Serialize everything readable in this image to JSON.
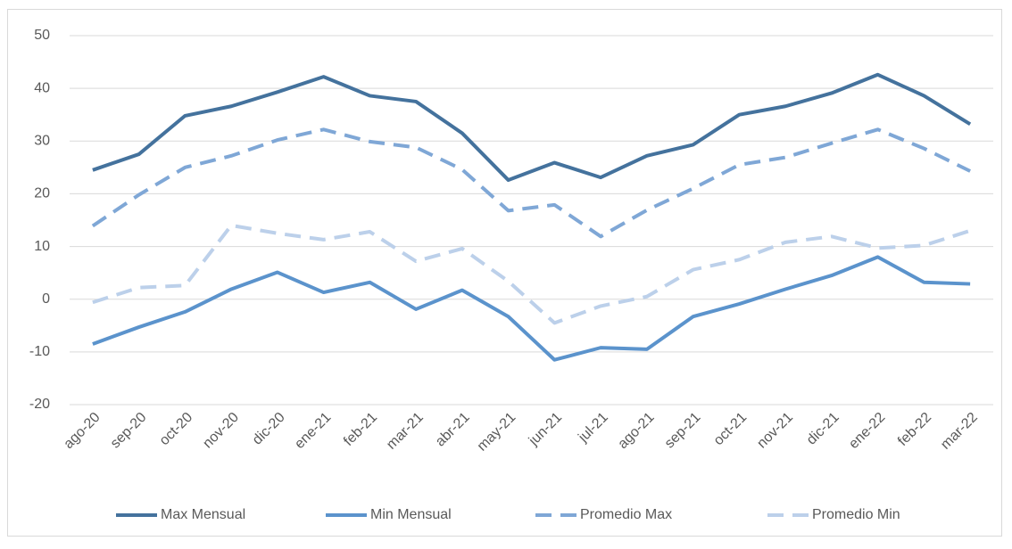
{
  "chart_data": {
    "type": "line",
    "categories": [
      "ago-20",
      "sep-20",
      "oct-20",
      "nov-20",
      "dic-20",
      "ene-21",
      "feb-21",
      "mar-21",
      "abr-21",
      "may-21",
      "jun-21",
      "jul-21",
      "ago-21",
      "sep-21",
      "oct-21",
      "nov-21",
      "dic-21",
      "ene-22",
      "feb-22",
      "mar-22"
    ],
    "series": [
      {
        "name": "Max Mensual",
        "color": "#44729d",
        "dash": false,
        "values": [
          24.5,
          27.5,
          34.8,
          36.6,
          39.3,
          42.2,
          38.6,
          37.5,
          31.5,
          22.6,
          25.9,
          23.1,
          27.2,
          29.3,
          35.0,
          36.6,
          39.1,
          42.6,
          38.6,
          33.2
        ]
      },
      {
        "name": "Min Mensual",
        "color": "#5b93cc",
        "dash": false,
        "values": [
          -8.5,
          -5.3,
          -2.4,
          1.9,
          5.1,
          1.3,
          3.2,
          -1.9,
          1.7,
          -3.3,
          -11.5,
          -9.2,
          -9.5,
          -3.3,
          -0.9,
          1.9,
          4.5,
          8.0,
          3.2,
          2.9
        ]
      },
      {
        "name": "Promedio Max",
        "color": "#7fa7d6",
        "dash": true,
        "values": [
          13.9,
          19.8,
          25.0,
          27.2,
          30.2,
          32.2,
          29.9,
          28.8,
          24.6,
          16.8,
          17.9,
          11.9,
          16.9,
          21.0,
          25.5,
          26.9,
          29.6,
          32.2,
          28.6,
          24.3
        ]
      },
      {
        "name": "Promedio Min",
        "color": "#bcd0ea",
        "dash": true,
        "values": [
          -0.6,
          2.2,
          2.6,
          14.0,
          12.5,
          11.3,
          12.8,
          7.2,
          9.6,
          3.4,
          -4.5,
          -1.3,
          0.5,
          5.6,
          7.5,
          10.8,
          11.9,
          9.7,
          10.2,
          13.0
        ]
      }
    ],
    "ylim": [
      -20,
      50
    ],
    "yticks": [
      -20,
      -10,
      0,
      10,
      20,
      30,
      40,
      50
    ],
    "grid": true,
    "legend": "bottom"
  }
}
